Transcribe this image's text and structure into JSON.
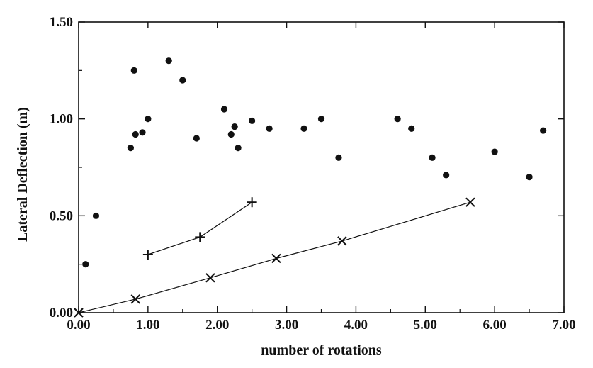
{
  "chart_data": {
    "type": "scatter",
    "title": "",
    "xlabel": "number of rotations",
    "ylabel": "Lateral Deflection (m)",
    "xlim": [
      0,
      7
    ],
    "ylim": [
      0,
      1.5
    ],
    "xticks": [
      "0.00",
      "1.00",
      "2.00",
      "3.00",
      "4.00",
      "5.00",
      "6.00",
      "7.00"
    ],
    "yticks": [
      "0.00",
      "0.50",
      "1.00",
      "1.50"
    ],
    "grid": false,
    "legend": "none",
    "series": [
      {
        "marker": "circle",
        "line": false,
        "points": [
          [
            0.1,
            0.25
          ],
          [
            0.25,
            0.5
          ],
          [
            0.75,
            0.85
          ],
          [
            0.8,
            1.25
          ],
          [
            0.82,
            0.92
          ],
          [
            0.92,
            0.93
          ],
          [
            1.0,
            1.0
          ],
          [
            1.3,
            1.3
          ],
          [
            1.5,
            1.2
          ],
          [
            1.7,
            0.9
          ],
          [
            2.1,
            1.05
          ],
          [
            2.2,
            0.92
          ],
          [
            2.25,
            0.96
          ],
          [
            2.3,
            0.85
          ],
          [
            2.5,
            0.99
          ],
          [
            2.75,
            0.95
          ],
          [
            3.25,
            0.95
          ],
          [
            3.5,
            1.0
          ],
          [
            3.75,
            0.8
          ],
          [
            4.6,
            1.0
          ],
          [
            4.8,
            0.95
          ],
          [
            5.1,
            0.8
          ],
          [
            5.3,
            0.71
          ],
          [
            6.0,
            0.83
          ],
          [
            6.5,
            0.7
          ],
          [
            6.7,
            0.94
          ]
        ]
      },
      {
        "marker": "plus",
        "line": true,
        "points": [
          [
            1.0,
            0.3
          ],
          [
            1.75,
            0.39
          ],
          [
            2.5,
            0.57
          ]
        ]
      },
      {
        "marker": "x",
        "line": true,
        "points": [
          [
            0.0,
            0.0
          ],
          [
            0.82,
            0.07
          ],
          [
            1.9,
            0.18
          ],
          [
            2.85,
            0.28
          ],
          [
            3.8,
            0.37
          ],
          [
            5.65,
            0.57
          ]
        ]
      }
    ],
    "colors": {
      "ink": "#111111",
      "background": "#ffffff"
    }
  }
}
